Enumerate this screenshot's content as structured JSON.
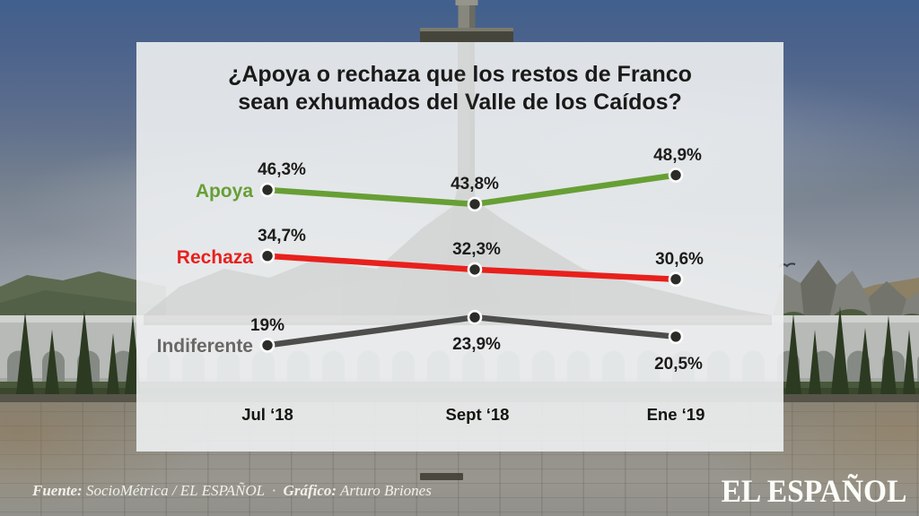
{
  "title": {
    "line1": "¿Apoya o rechaza que los restos de Franco",
    "line2": "sean exhumados del Valle de los Caídos?"
  },
  "chart_data": {
    "type": "line",
    "categories": [
      "Jul ‘18",
      "Sept ‘18",
      "Ene ‘19"
    ],
    "series": [
      {
        "name": "Apoya",
        "color": "#679f35",
        "values": [
          46.3,
          43.8,
          48.9
        ],
        "point_labels": [
          "46,3%",
          "43,8%",
          "48,9%"
        ]
      },
      {
        "name": "Rechaza",
        "color": "#e8201c",
        "values": [
          34.7,
          32.3,
          30.6
        ],
        "point_labels": [
          "34,7%",
          "32,3%",
          "30,6%"
        ]
      },
      {
        "name": "Indiferente",
        "color": "#4d4d4b",
        "label_color": "#686866",
        "values": [
          19,
          23.9,
          20.5
        ],
        "point_labels": [
          "19%",
          "23,9%",
          "20,5%"
        ]
      }
    ],
    "ylim": [
      15,
      52
    ],
    "grid": false,
    "legend_position": "left-of-first-point"
  },
  "footer": {
    "source_label": "Fuente:",
    "source_value": "SocioMétrica / EL ESPAÑOL",
    "separator": "·",
    "credit_label": "Gráfico:",
    "credit_value": "Arturo Briones"
  },
  "brand": {
    "logo": "EL ESPAÑOL"
  }
}
